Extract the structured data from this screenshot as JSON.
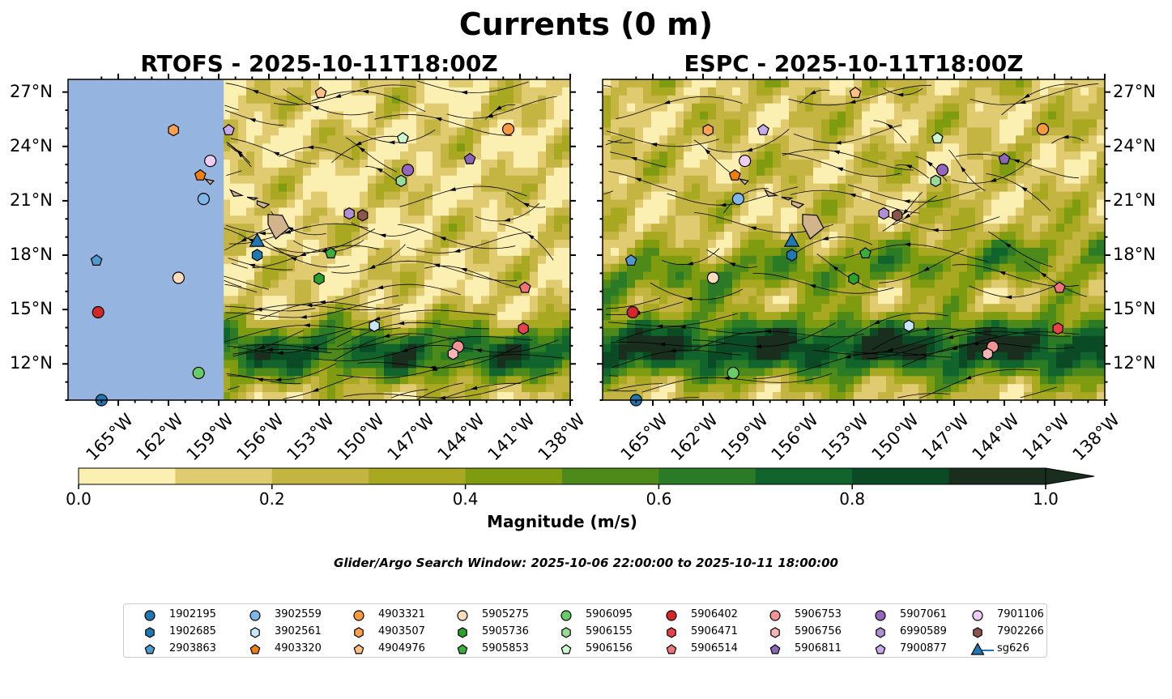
{
  "figure": {
    "suptitle": "Currents (0 m)",
    "search_window": "Glider/Argo Search Window: 2025-10-06 22:00:00 to 2025-10-11 18:00:00",
    "colors": {
      "land": "#d2b48c",
      "no_data": "#96b4e0",
      "streamline": "#000000",
      "glider": "#1f77b4"
    }
  },
  "chart_data": [
    {
      "type": "streamline-contourf-map",
      "title": "RTOFS - 2025-10-11T18:00Z",
      "xlim": [
        -168,
        -138
      ],
      "ylim": [
        10,
        27.7
      ],
      "x_ticks": [
        "165°W",
        "162°W",
        "159°W",
        "156°W",
        "153°W",
        "150°W",
        "147°W",
        "144°W",
        "141°W",
        "138°W"
      ],
      "y_ticks": [
        "27°N",
        "24°N",
        "21°N",
        "18°N",
        "15°N",
        "12°N"
      ],
      "y_tick_side": "left",
      "no_data_west_of": -158.7,
      "high_speed_band": "strong westward flow 11–14°N",
      "peak_speed": 0.9
    },
    {
      "type": "streamline-contourf-map",
      "title": "ESPC - 2025-10-11T18:00Z",
      "xlim": [
        -168,
        -138
      ],
      "ylim": [
        10,
        27.7
      ],
      "x_ticks": [
        "165°W",
        "162°W",
        "159°W",
        "156°W",
        "153°W",
        "150°W",
        "147°W",
        "144°W",
        "141°W",
        "138°W"
      ],
      "y_ticks": [
        "27°N",
        "24°N",
        "21°N",
        "18°N",
        "15°N",
        "12°N"
      ],
      "y_tick_side": "right",
      "no_data_west_of": null,
      "high_speed_band": "strong westward flow 11–15°N",
      "peak_speed": 0.95
    }
  ],
  "colorbar": {
    "label": "Magnitude (m/s)",
    "ticks": [
      "0.0",
      "0.2",
      "0.4",
      "0.6",
      "0.8",
      "1.0"
    ],
    "levels": [
      0,
      0.1,
      0.2,
      0.3,
      0.4,
      0.5,
      0.6,
      0.7,
      0.8,
      0.9,
      1.0
    ],
    "colors": [
      "#fbf0b2",
      "#e0cb70",
      "#c4b542",
      "#a8a821",
      "#7f9c10",
      "#4e8a19",
      "#2a7a26",
      "#11652c",
      "#0a4a24",
      "#1a2e1e"
    ],
    "extend": "max"
  },
  "floats": [
    {
      "id": "1902195",
      "marker": "circle",
      "color": "#1f77b4",
      "lon": -166.0,
      "lat": 10.0
    },
    {
      "id": "1902685",
      "marker": "hexagon",
      "color": "#1f77b4",
      "lon": -156.7,
      "lat": 18.0
    },
    {
      "id": "2903863",
      "marker": "pentagon",
      "color": "#4f9ad0",
      "lon": -166.3,
      "lat": 17.7
    },
    {
      "id": "3902559",
      "marker": "circle",
      "color": "#7fb8e8",
      "lon": -159.9,
      "lat": 21.1
    },
    {
      "id": "3902561",
      "marker": "hexagon",
      "color": "#c6e6fb",
      "lon": -149.7,
      "lat": 14.1
    },
    {
      "id": "4903320",
      "marker": "pentagon",
      "color": "#f07f12",
      "lon": -160.1,
      "lat": 22.4
    },
    {
      "id": "4903321",
      "marker": "circle",
      "color": "#fb9a3c",
      "lon": -141.7,
      "lat": 24.95
    },
    {
      "id": "4903507",
      "marker": "hexagon",
      "color": "#ffa050",
      "lon": -161.7,
      "lat": 24.9
    },
    {
      "id": "4904976",
      "marker": "pentagon",
      "color": "#ffbf80",
      "lon": -152.9,
      "lat": 26.95
    },
    {
      "id": "5905275",
      "marker": "circle",
      "color": "#fedcbc",
      "lon": -161.4,
      "lat": 16.75
    },
    {
      "id": "5905736",
      "marker": "hexagon",
      "color": "#2ca02c",
      "lon": -153.0,
      "lat": 16.7
    },
    {
      "id": "5905853",
      "marker": "pentagon",
      "color": "#3cae3c",
      "lon": -152.3,
      "lat": 18.1
    },
    {
      "id": "5906095",
      "marker": "circle",
      "color": "#66cc66",
      "lon": -160.2,
      "lat": 11.5
    },
    {
      "id": "5906155",
      "marker": "hexagon",
      "color": "#96dc96",
      "lon": -148.1,
      "lat": 22.1
    },
    {
      "id": "5906156",
      "marker": "pentagon",
      "color": "#cdf7cd",
      "lon": -148.0,
      "lat": 24.45
    },
    {
      "id": "5906402",
      "marker": "circle",
      "color": "#d62728",
      "lon": -166.2,
      "lat": 14.85
    },
    {
      "id": "5906471",
      "marker": "hexagon",
      "color": "#e8414a",
      "lon": -140.8,
      "lat": 13.95
    },
    {
      "id": "5906514",
      "marker": "pentagon",
      "color": "#f07478",
      "lon": -140.7,
      "lat": 16.2
    },
    {
      "id": "5906753",
      "marker": "circle",
      "color": "#f29496",
      "lon": -144.7,
      "lat": 12.95
    },
    {
      "id": "5906756",
      "marker": "hexagon",
      "color": "#f7b4b6",
      "lon": -145.0,
      "lat": 12.55
    },
    {
      "id": "5906811",
      "marker": "pentagon",
      "color": "#8c64b8",
      "lon": -144.0,
      "lat": 23.3
    },
    {
      "id": "5907061",
      "marker": "circle",
      "color": "#9467bd",
      "lon": -147.7,
      "lat": 22.7
    },
    {
      "id": "6990589",
      "marker": "hexagon",
      "color": "#b08fd6",
      "lon": -151.2,
      "lat": 20.3
    },
    {
      "id": "7900877",
      "marker": "pentagon",
      "color": "#c7a9ec",
      "lon": -158.4,
      "lat": 24.9
    },
    {
      "id": "7901106",
      "marker": "circle",
      "color": "#f0cdf5",
      "lon": -159.5,
      "lat": 23.2
    },
    {
      "id": "7902266",
      "marker": "hexagon",
      "color": "#8c564b",
      "lon": -150.4,
      "lat": 20.2
    },
    {
      "id": "sg626",
      "marker": "triangle",
      "color": "#1f77b4",
      "lon": -156.7,
      "lat": 18.8
    }
  ]
}
